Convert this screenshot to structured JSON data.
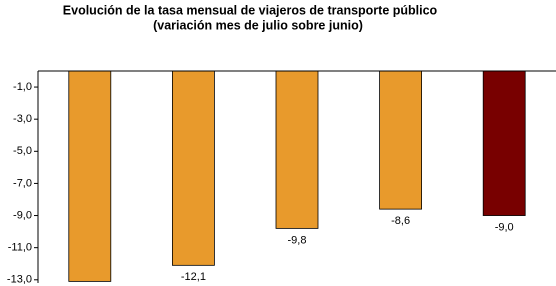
{
  "chart_data": {
    "type": "bar",
    "title": [
      "Evolución de la tasa mensual de viajeros de transporte público",
      "(variación mes de julio sobre  junio)"
    ],
    "categories": [
      null,
      null,
      null,
      null,
      null
    ],
    "values": [
      -13.1,
      -12.1,
      -9.8,
      -8.6,
      -9.0
    ],
    "value_labels": [
      null,
      "-12,1",
      "-9,8",
      "-8,6",
      "-9,0"
    ],
    "colors": [
      "#e89a2c",
      "#e89a2c",
      "#e89a2c",
      "#e89a2c",
      "#780000"
    ],
    "ylim": [
      0,
      -13.2
    ],
    "yticks": [
      {
        "value": -1,
        "label": "-1,0"
      },
      {
        "value": -3,
        "label": "-3,0"
      },
      {
        "value": -5,
        "label": "-5,0"
      },
      {
        "value": -7,
        "label": "-7,0"
      },
      {
        "value": -9,
        "label": "-9,0"
      },
      {
        "value": -11,
        "label": "-11,0"
      },
      {
        "value": -13,
        "label": "-13,0"
      }
    ],
    "grid": false
  }
}
